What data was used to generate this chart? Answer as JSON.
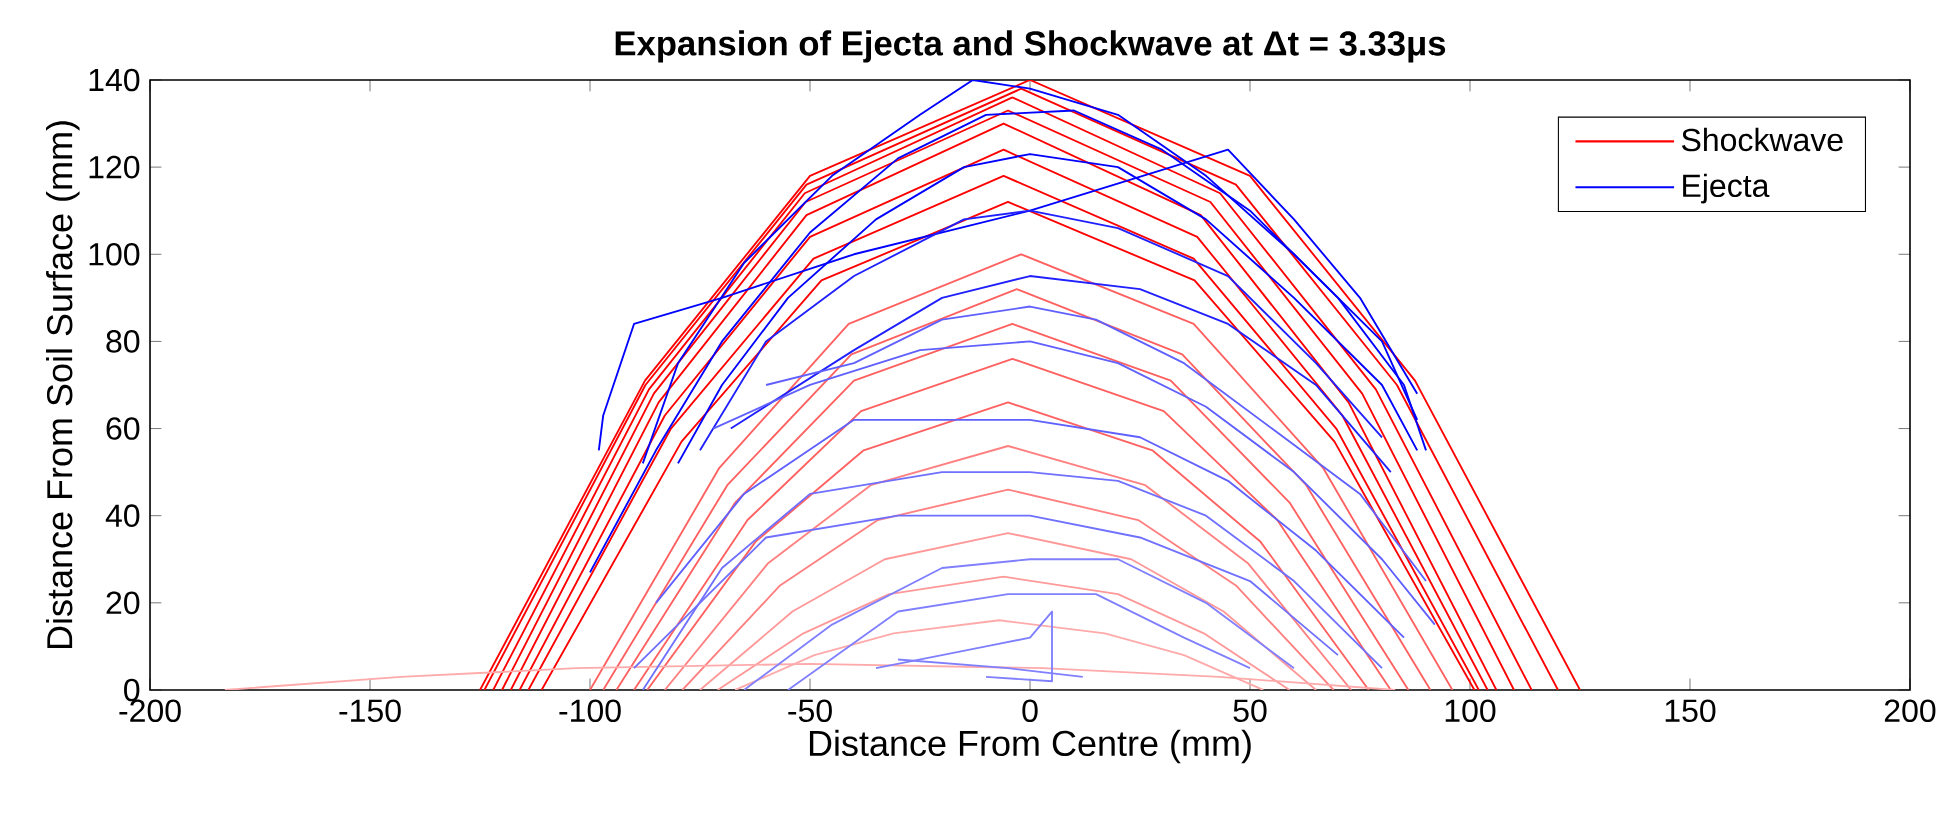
{
  "chart_data": {
    "type": "line",
    "title": "Expansion of Ejecta and Shockwave at Δt = 3.33μs",
    "xlabel": "Distance From Centre (mm)",
    "ylabel": "Distance From Soil Surface (mm)",
    "xlim": [
      -200,
      200
    ],
    "ylim": [
      0,
      140
    ],
    "xticks": [
      -200,
      -150,
      -100,
      -50,
      0,
      50,
      100,
      150,
      200
    ],
    "yticks": [
      0,
      20,
      40,
      60,
      80,
      100,
      120,
      140
    ],
    "grid": false,
    "legend": "top right",
    "marker": "none",
    "line_style": "solid",
    "series": [
      {
        "name": "Shockwave",
        "color": "#ff0000",
        "x": [
          -125,
          -87.5,
          -50,
          0,
          50,
          87.5,
          125
        ],
        "values": [
          0,
          71,
          118,
          140,
          118,
          71,
          0
        ]
      },
      {
        "color": "#ff0000",
        "x": [
          -124,
          -87.4,
          -50.8,
          -2,
          46.8,
          83.4,
          120
        ],
        "values": [
          0,
          70,
          116,
          138,
          116,
          70,
          0
        ]
      },
      {
        "color": "#ff0000",
        "x": [
          -122,
          -86.6,
          -51.2,
          -4,
          43.2,
          78.6,
          114
        ],
        "values": [
          0,
          69,
          114,
          136,
          114,
          69,
          0
        ]
      },
      {
        "color": "#ff0000",
        "x": [
          -120,
          -85.5,
          -51,
          -5,
          41,
          75.5,
          110
        ],
        "values": [
          0,
          68,
          112,
          133,
          112,
          68,
          0
        ]
      },
      {
        "color": "#ff0000",
        "x": [
          -118,
          -84.4,
          -50.8,
          -6,
          38.8,
          72.4,
          106
        ],
        "values": [
          0,
          66,
          109,
          130,
          109,
          66,
          0
        ]
      },
      {
        "color": "#ff0000",
        "x": [
          -116,
          -83,
          -50,
          -6,
          38,
          71,
          104
        ],
        "values": [
          0,
          63,
          104,
          124,
          104,
          63,
          0
        ]
      },
      {
        "color": "#ff0000",
        "x": [
          -114,
          -81.6,
          -49.2,
          -6,
          37.2,
          69.6,
          102
        ],
        "values": [
          0,
          60,
          99,
          118,
          99,
          60,
          0
        ]
      },
      {
        "color": "#ff0000",
        "x": [
          -111,
          -79.2,
          -47.4,
          -5,
          37.4,
          69.2,
          101
        ],
        "values": [
          0,
          57,
          94,
          112,
          94,
          57,
          0
        ]
      },
      {
        "color": "#ff6060",
        "x": [
          -100,
          -70.6,
          -41.2,
          -2,
          37.2,
          66.6,
          96
        ],
        "values": [
          0,
          51,
          84,
          100,
          84,
          51,
          0
        ]
      },
      {
        "color": "#ff6060",
        "x": [
          -97,
          -68.8,
          -40.6,
          -3,
          34.6,
          62.8,
          91
        ],
        "values": [
          0,
          47,
          77,
          92,
          77,
          47,
          0
        ]
      },
      {
        "color": "#ff6060",
        "x": [
          -94,
          -67,
          -40,
          -4,
          32,
          59,
          86
        ],
        "values": [
          0,
          43,
          71,
          84,
          71,
          43,
          0
        ]
      },
      {
        "color": "#ff6060",
        "x": [
          -90,
          -64.2,
          -38.4,
          -4,
          30.4,
          56.2,
          82
        ],
        "values": [
          0,
          39,
          64,
          76,
          64,
          39,
          0
        ]
      },
      {
        "color": "#ff6060",
        "x": [
          -87,
          -62.4,
          -37.8,
          -5,
          27.8,
          52.4,
          77
        ],
        "values": [
          0,
          34,
          55,
          66,
          55,
          34,
          0
        ]
      },
      {
        "color": "#ff8080",
        "x": [
          -83,
          -59.6,
          -36.2,
          -5,
          26.2,
          49.6,
          73
        ],
        "values": [
          0,
          29,
          47,
          56,
          47,
          29,
          0
        ]
      },
      {
        "color": "#ff8080",
        "x": [
          -79,
          -56.8,
          -34.6,
          -5,
          24.6,
          46.8,
          69
        ],
        "values": [
          0,
          24,
          39,
          46,
          39,
          24,
          0
        ]
      },
      {
        "color": "#ff9999",
        "x": [
          -75,
          -54,
          -33,
          -5,
          23,
          44,
          65
        ],
        "values": [
          0,
          18,
          30,
          36,
          30,
          18,
          0
        ]
      },
      {
        "color": "#ff9999",
        "x": [
          -71,
          -51.5,
          -32,
          -6,
          20,
          39.5,
          59
        ],
        "values": [
          0,
          13,
          22,
          26,
          22,
          13,
          0
        ]
      },
      {
        "color": "#ffaaaa",
        "x": [
          -67,
          -49,
          -31,
          -7,
          17,
          35,
          53
        ],
        "values": [
          0,
          8,
          13,
          16,
          13,
          8,
          0
        ]
      },
      {
        "color": "#ffaaaa",
        "x": [
          -183,
          -143,
          -103,
          -50,
          3,
          43,
          83
        ],
        "values": [
          0,
          3,
          5,
          6,
          5,
          3,
          0
        ]
      },
      {
        "name": "Ejecta",
        "color": "#0000ff",
        "x": [
          -88,
          -80,
          -65,
          -45,
          -25,
          -13,
          0,
          20,
          40,
          60,
          80,
          88
        ],
        "values": [
          52,
          75,
          98,
          118,
          132,
          140,
          138,
          132,
          118,
          100,
          80,
          62
        ]
      },
      {
        "color": "#0000ff",
        "x": [
          -100,
          -85,
          -70,
          -50,
          -30,
          -10,
          10,
          30,
          50,
          70,
          85,
          90
        ],
        "values": [
          27,
          55,
          80,
          105,
          122,
          132,
          133,
          124,
          110,
          90,
          70,
          55
        ]
      },
      {
        "color": "#0000ff",
        "x": [
          -98,
          -97,
          -90,
          -70,
          -40,
          0,
          45,
          60,
          75,
          88
        ],
        "values": [
          55,
          63,
          84,
          90,
          100,
          110,
          124,
          108,
          90,
          68
        ]
      },
      {
        "color": "#0000ff",
        "x": [
          -80,
          -70,
          -55,
          -35,
          -15,
          0,
          20,
          40,
          60,
          80,
          88
        ],
        "values": [
          52,
          70,
          90,
          108,
          120,
          123,
          120,
          108,
          90,
          70,
          55
        ]
      },
      {
        "color": "#2020ff",
        "x": [
          -75,
          -60,
          -40,
          -15,
          0,
          20,
          45,
          65,
          80
        ],
        "values": [
          55,
          80,
          95,
          108,
          110,
          106,
          95,
          75,
          58
        ]
      },
      {
        "color": "#2020ff",
        "x": [
          -68,
          -40,
          -20,
          0,
          25,
          45,
          65,
          82
        ],
        "values": [
          60,
          78,
          90,
          95,
          92,
          84,
          70,
          50
        ]
      },
      {
        "color": "#6060ff",
        "x": [
          -60,
          -40,
          -20,
          0,
          15,
          35,
          55,
          75,
          90
        ],
        "values": [
          70,
          75,
          85,
          88,
          85,
          75,
          60,
          45,
          25
        ]
      },
      {
        "color": "#6060ff",
        "x": [
          -72,
          -50,
          -25,
          0,
          20,
          40,
          60,
          80,
          92
        ],
        "values": [
          60,
          70,
          78,
          80,
          75,
          65,
          50,
          30,
          15
        ]
      },
      {
        "color": "#6060ff",
        "x": [
          -85,
          -65,
          -40,
          -15,
          0,
          25,
          45,
          65,
          85
        ],
        "values": [
          20,
          45,
          62,
          62,
          62,
          58,
          48,
          32,
          12
        ]
      },
      {
        "color": "#7070ff",
        "x": [
          -88,
          -70,
          -50,
          -20,
          0,
          20,
          40,
          60,
          80
        ],
        "values": [
          0,
          28,
          45,
          50,
          50,
          48,
          40,
          25,
          5
        ]
      },
      {
        "color": "#7070ff",
        "x": [
          -90,
          -60,
          -30,
          0,
          25,
          50,
          70
        ],
        "values": [
          5,
          35,
          40,
          40,
          35,
          25,
          8
        ]
      },
      {
        "color": "#8080ff",
        "x": [
          -65,
          -45,
          -20,
          0,
          20,
          40,
          60
        ],
        "values": [
          0,
          15,
          28,
          30,
          30,
          20,
          5
        ]
      },
      {
        "color": "#8080ff",
        "x": [
          -55,
          -30,
          -5,
          15,
          35,
          50
        ],
        "values": [
          0,
          18,
          22,
          22,
          12,
          5
        ]
      },
      {
        "color": "#8080ff",
        "x": [
          -35,
          -20,
          -10,
          0,
          5,
          5,
          -10
        ],
        "values": [
          5,
          8,
          10,
          12,
          18,
          2,
          3
        ]
      },
      {
        "color": "#8080ff",
        "x": [
          -30,
          -5,
          12
        ],
        "values": [
          7,
          5,
          3
        ]
      }
    ]
  }
}
